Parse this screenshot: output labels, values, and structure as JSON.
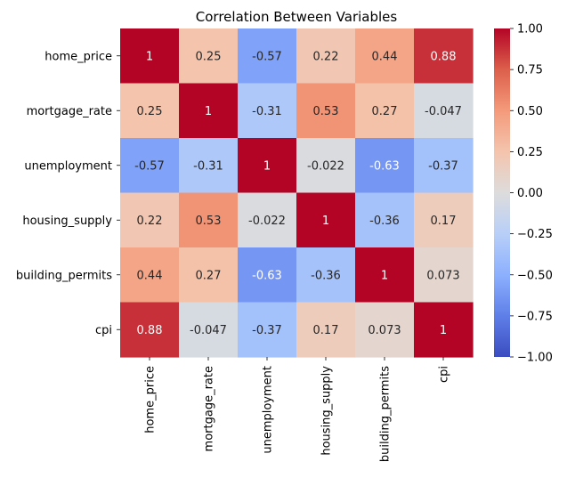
{
  "chart_data": {
    "type": "heatmap",
    "title": "Correlation Between Variables",
    "xlabel": "",
    "ylabel": "",
    "x_labels": [
      "home_price",
      "mortgage_rate",
      "unemployment",
      "housing_supply",
      "building_permits",
      "cpi"
    ],
    "y_labels": [
      "home_price",
      "mortgage_rate",
      "unemployment",
      "housing_supply",
      "building_permits",
      "cpi"
    ],
    "values": [
      [
        1,
        0.25,
        -0.57,
        0.22,
        0.44,
        0.88
      ],
      [
        0.25,
        1,
        -0.31,
        0.53,
        0.27,
        -0.047
      ],
      [
        -0.57,
        -0.31,
        1,
        -0.022,
        -0.63,
        -0.37
      ],
      [
        0.22,
        0.53,
        -0.022,
        1,
        -0.36,
        0.17
      ],
      [
        0.44,
        0.27,
        -0.63,
        -0.36,
        1,
        0.073
      ],
      [
        0.88,
        -0.047,
        -0.37,
        0.17,
        0.073,
        1
      ]
    ],
    "annotations": [
      [
        "1",
        "0.25",
        "-0.57",
        "0.22",
        "0.44",
        "0.88"
      ],
      [
        "0.25",
        "1",
        "-0.31",
        "0.53",
        "0.27",
        "-0.047"
      ],
      [
        "-0.57",
        "-0.31",
        "1",
        "-0.022",
        "-0.63",
        "-0.37"
      ],
      [
        "0.22",
        "0.53",
        "-0.022",
        "1",
        "-0.36",
        "0.17"
      ],
      [
        "0.44",
        "0.27",
        "-0.63",
        "-0.36",
        "1",
        "0.073"
      ],
      [
        "0.88",
        "-0.047",
        "-0.37",
        "0.17",
        "0.073",
        "1"
      ]
    ],
    "colorscale": "coolwarm",
    "vmin": -1,
    "vmax": 1,
    "colorbar_ticks": [
      1.0,
      0.75,
      0.5,
      0.25,
      0.0,
      -0.25,
      -0.5,
      -0.75,
      -1.0
    ],
    "colorbar_tick_labels": [
      "1.00",
      "0.75",
      "0.50",
      "0.25",
      "0.00",
      "−0.25",
      "−0.50",
      "−0.75",
      "−1.00"
    ],
    "grid": false,
    "legend": "colorbar-right"
  }
}
